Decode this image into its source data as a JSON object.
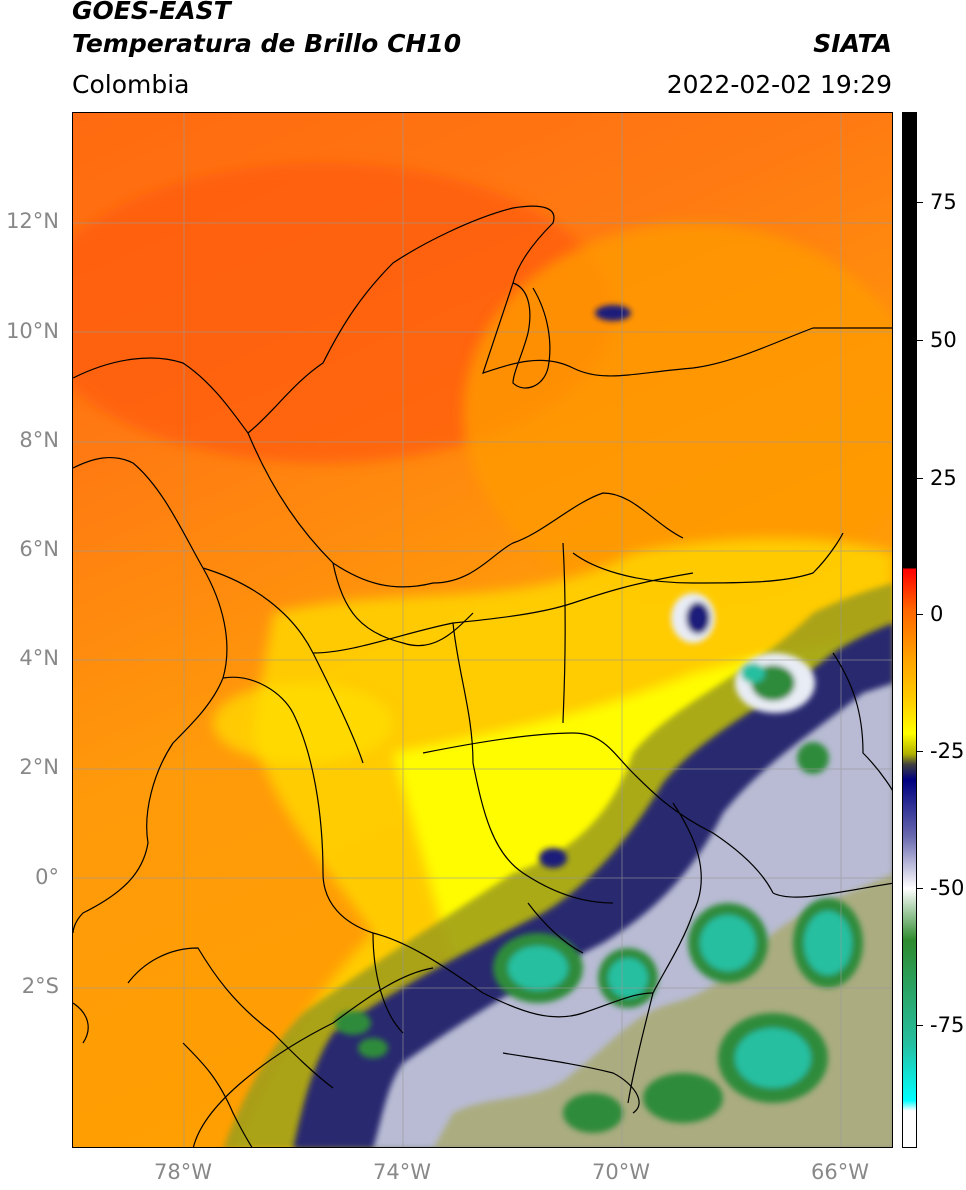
{
  "header": {
    "satellite": "GOES-EAST",
    "product": "Temperatura de Brillo CH10",
    "region": "Colombia",
    "agency": "SIATA",
    "timestamp": "2022-02-02 19:29"
  },
  "map": {
    "lat_labels": [
      "12°N",
      "10°N",
      "8°N",
      "6°N",
      "4°N",
      "2°N",
      "0°",
      "2°S"
    ],
    "lon_labels": [
      "78°W",
      "74°W",
      "70°W",
      "66°W"
    ],
    "colors": {
      "warm_red": "#ff5a10",
      "orange": "#ff9800",
      "yellow": "#ffff00",
      "olive": "#9c9c1e",
      "navy": "#1a1a7a",
      "white": "#ffffff",
      "green": "#2e8b3a",
      "teal": "#26bfa0"
    }
  },
  "colorbar": {
    "labels": [
      "75",
      "50",
      "25",
      "0",
      "-25",
      "-50",
      "-75"
    ]
  }
}
